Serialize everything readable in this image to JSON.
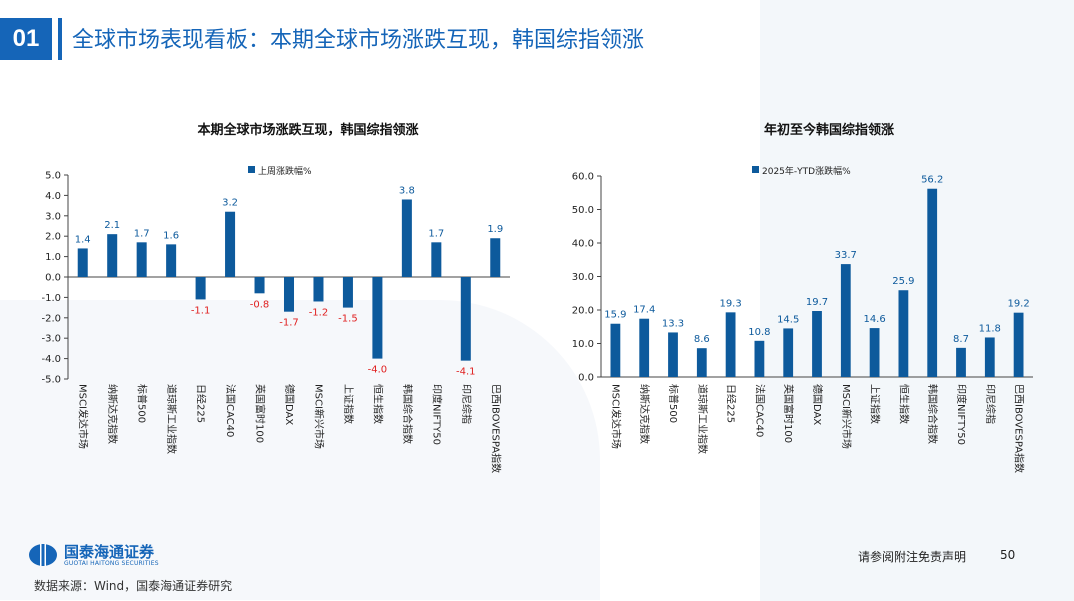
{
  "header": {
    "number": "01",
    "title": "全球市场表现看板：本期全球市场涨跌互现，韩国综指领涨"
  },
  "chart_data": [
    {
      "type": "bar",
      "title": "本期全球市场涨跌互现，韩国综指领涨",
      "legend": "上周涨跌幅%",
      "categories": [
        "MSCI发达市场",
        "纳斯达克指数",
        "标普500",
        "道琼斯工业指数",
        "日经225",
        "法国CAC40",
        "英国富时100",
        "德国DAX",
        "MSCI新兴市场",
        "上证指数",
        "恒生指数",
        "韩国综合指数",
        "印度NIFTY50",
        "印尼综指",
        "巴西IBOVESPA指数"
      ],
      "values": [
        1.4,
        2.1,
        1.7,
        1.6,
        -1.1,
        3.2,
        -0.8,
        -1.7,
        -1.2,
        -1.5,
        -4.0,
        3.8,
        1.7,
        -4.1,
        1.9
      ],
      "labels": [
        "1.4",
        "2.1",
        "1.7",
        "1.6",
        "-1.1",
        "3.2",
        "-0.8",
        "-1.7",
        "-1.2",
        "-1.5",
        "-4.0",
        "3.8",
        "1.7",
        "-4.1",
        "1.9"
      ],
      "ylim": [
        -5,
        5
      ],
      "yticks": [
        "5.0",
        "4.0",
        "3.0",
        "2.0",
        "1.0",
        "0.0",
        "-1.0",
        "-2.0",
        "-3.0",
        "-4.0",
        "-5.0"
      ],
      "bar_color": "#0d5a9c",
      "pos_label_color": "#0d5a9c",
      "neg_label_color": "#e02020"
    },
    {
      "type": "bar",
      "title": "年初至今韩国综指领涨",
      "legend": "2025年-YTD涨跌幅%",
      "categories": [
        "MSCI发达市场",
        "纳斯达克指数",
        "标普500",
        "道琼斯工业指数",
        "日经225",
        "法国CAC40",
        "英国富时100",
        "德国DAX",
        "MSCI新兴市场",
        "上证指数",
        "恒生指数",
        "韩国综合指数",
        "印度NIFTY50",
        "印尼综指",
        "巴西IBOVESPA指数"
      ],
      "values": [
        15.9,
        17.4,
        13.3,
        8.6,
        19.3,
        10.8,
        14.5,
        19.7,
        33.7,
        14.6,
        25.9,
        56.2,
        8.7,
        11.8,
        19.2
      ],
      "labels": [
        "15.9",
        "17.4",
        "13.3",
        "8.6",
        "19.3",
        "10.8",
        "14.5",
        "19.7",
        "33.7",
        "14.6",
        "25.9",
        "56.2",
        "8.7",
        "11.8",
        "19.2"
      ],
      "ylim": [
        0,
        60
      ],
      "yticks": [
        "60.0",
        "50.0",
        "40.0",
        "30.0",
        "20.0",
        "10.0",
        "0.0"
      ],
      "bar_color": "#0d5a9c",
      "pos_label_color": "#0d5a9c",
      "neg_label_color": "#e02020"
    }
  ],
  "footer": {
    "logo_cn": "国泰海通证券",
    "logo_en": "GUOTAI HAITONG SECURITIES",
    "source": "数据来源：Wind，国泰海通证券研究",
    "disclaimer": "请参阅附注免责声明",
    "page": "50"
  }
}
